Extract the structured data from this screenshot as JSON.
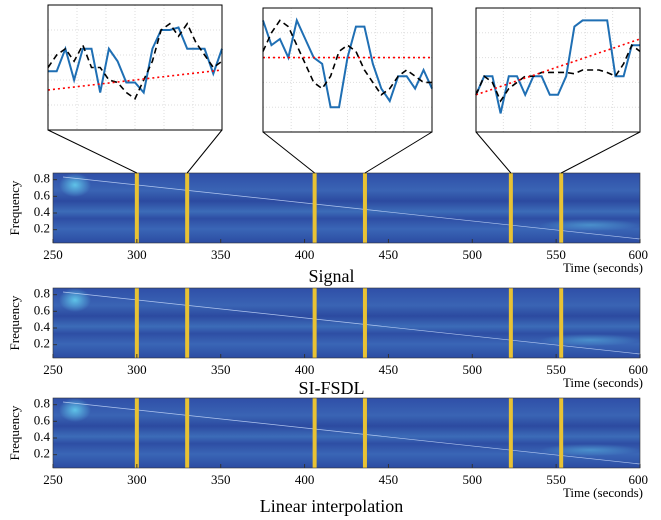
{
  "chart_data": [
    {
      "type": "line",
      "xlim": [
        300,
        330
      ],
      "ylim": [
        0,
        1
      ],
      "grid": true,
      "x": [
        300,
        301.5,
        303,
        304.5,
        306,
        307.5,
        309,
        310.5,
        312,
        313.5,
        315,
        316.5,
        318,
        319.5,
        321,
        322.5,
        324,
        325.5,
        327,
        328.5,
        330
      ],
      "series": [
        {
          "color": "#1f6fb4",
          "style": "solid",
          "values": [
            0.47,
            0.47,
            0.65,
            0.4,
            0.65,
            0.65,
            0.3,
            0.65,
            0.55,
            0.38,
            0.38,
            0.3,
            0.65,
            0.8,
            0.8,
            0.82,
            0.65,
            0.65,
            0.65,
            0.45,
            0.65
          ]
        },
        {
          "color": "#000000",
          "style": "dashed",
          "values": [
            0.5,
            0.6,
            0.65,
            0.55,
            0.68,
            0.5,
            0.5,
            0.4,
            0.38,
            0.3,
            0.25,
            0.4,
            0.55,
            0.8,
            0.85,
            0.75,
            0.85,
            0.7,
            0.6,
            0.5,
            0.55
          ]
        },
        {
          "color": "#ff0000",
          "style": "dotted",
          "x": [
            300,
            330
          ],
          "values": [
            0.32,
            0.48
          ]
        }
      ]
    },
    {
      "type": "line",
      "xlim": [
        406,
        436
      ],
      "ylim": [
        0,
        1
      ],
      "grid": true,
      "x": [
        406,
        407.5,
        409,
        410.5,
        412,
        413.5,
        415,
        416.5,
        418,
        419.5,
        421,
        422.5,
        424,
        425.5,
        427,
        428.5,
        430,
        431.5,
        433,
        434.5,
        436
      ],
      "series": [
        {
          "color": "#1f6fb4",
          "style": "solid",
          "values": [
            0.9,
            0.7,
            0.75,
            0.6,
            0.9,
            0.75,
            0.6,
            0.55,
            0.2,
            0.2,
            0.6,
            0.85,
            0.85,
            0.55,
            0.35,
            0.25,
            0.45,
            0.45,
            0.35,
            0.5,
            0.35
          ]
        },
        {
          "color": "#000000",
          "style": "dashed",
          "values": [
            0.65,
            0.8,
            0.9,
            0.85,
            0.7,
            0.55,
            0.4,
            0.35,
            0.45,
            0.65,
            0.7,
            0.65,
            0.5,
            0.4,
            0.3,
            0.35,
            0.45,
            0.5,
            0.45,
            0.4,
            0.4
          ]
        },
        {
          "color": "#ff0000",
          "style": "dotted",
          "x": [
            406,
            436
          ],
          "values": [
            0.6,
            0.6
          ]
        }
      ]
    },
    {
      "type": "line",
      "xlim": [
        523,
        553
      ],
      "ylim": [
        0,
        1
      ],
      "grid": true,
      "x": [
        523,
        524.5,
        526,
        527.5,
        529,
        530.5,
        532,
        533.5,
        535,
        536.5,
        538,
        539.5,
        541,
        542.5,
        544,
        545.5,
        547,
        548.5,
        550,
        551.5,
        553
      ],
      "series": [
        {
          "color": "#1f6fb4",
          "style": "solid",
          "values": [
            0.3,
            0.45,
            0.45,
            0.15,
            0.45,
            0.45,
            0.3,
            0.45,
            0.45,
            0.3,
            0.3,
            0.45,
            0.85,
            0.9,
            0.9,
            0.9,
            0.9,
            0.45,
            0.45,
            0.7,
            0.7
          ]
        },
        {
          "color": "#000000",
          "style": "dashed",
          "values": [
            0.3,
            0.45,
            0.4,
            0.25,
            0.35,
            0.4,
            0.45,
            0.45,
            0.48,
            0.48,
            0.48,
            0.48,
            0.47,
            0.5,
            0.5,
            0.5,
            0.48,
            0.45,
            0.55,
            0.7,
            0.65
          ]
        },
        {
          "color": "#ff0000",
          "style": "dotted",
          "x": [
            523,
            553
          ],
          "values": [
            0.3,
            0.75
          ]
        }
      ]
    },
    {
      "type": "heatmap",
      "title": "Signal",
      "xlabel": "Time (seconds)",
      "ylabel": "Frequency",
      "xlim": [
        250,
        600
      ],
      "ylim": [
        0.04,
        0.88
      ],
      "xticks": [
        250,
        300,
        350,
        400,
        450,
        500,
        550,
        600
      ],
      "yticks": [
        0.2,
        0.4,
        0.6,
        0.8
      ],
      "markers": [
        300,
        330,
        406,
        436,
        523,
        553
      ],
      "marker_color": "#e8c234"
    },
    {
      "type": "heatmap",
      "title": "SI-FSDL",
      "xlabel": "Time (seconds)",
      "ylabel": "Frequency",
      "xlim": [
        250,
        600
      ],
      "ylim": [
        0.04,
        0.88
      ],
      "xticks": [
        250,
        300,
        350,
        400,
        450,
        500,
        550,
        600
      ],
      "yticks": [
        0.2,
        0.4,
        0.6,
        0.8
      ],
      "markers": [
        300,
        330,
        406,
        436,
        523,
        553
      ],
      "marker_color": "#e8c234"
    },
    {
      "type": "heatmap",
      "title": "Linear interpolation",
      "xlabel": "Time (seconds)",
      "ylabel": "Frequency",
      "xlim": [
        250,
        600
      ],
      "ylim": [
        0.04,
        0.88
      ],
      "xticks": [
        250,
        300,
        350,
        400,
        450,
        500,
        550,
        600
      ],
      "yticks": [
        0.2,
        0.4,
        0.6,
        0.8
      ],
      "markers": [
        300,
        330,
        406,
        436,
        523,
        553
      ],
      "marker_color": "#e8c234"
    }
  ]
}
